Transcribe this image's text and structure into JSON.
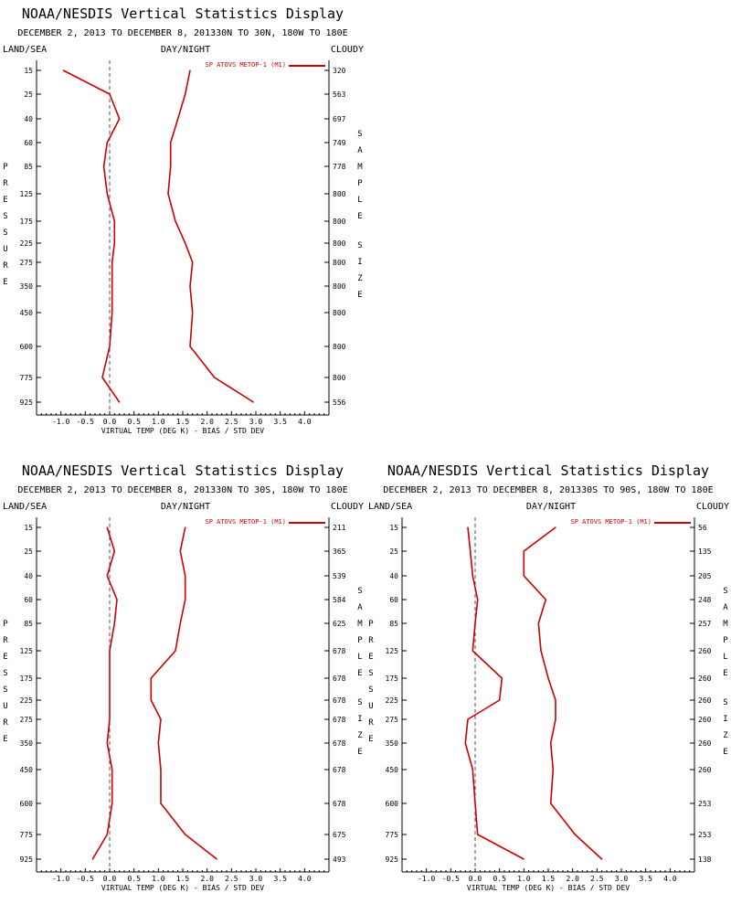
{
  "layout_note_colors": {
    "line": "#cc0000",
    "axis": "#000000",
    "zero_line": "#555555"
  },
  "chart_data": [
    {
      "type": "line",
      "title": "NOAA/NESDIS Vertical Statistics Display",
      "subtitle": "DECEMBER 2, 2013 TO DECEMBER 8, 201330N TO 30N, 180W TO 180E",
      "corner_left": "LAND/SEA",
      "corner_center": "DAY/NIGHT",
      "corner_right": "CLOUDY",
      "xlabel": "VIRTUAL TEMP (DEG K) - BIAS / STD DEV",
      "ylabel_left": "PRESSURE",
      "ylabel_right": "SAMPLE SIZE",
      "legend": "SP ATOVS METOP-1 (M1)",
      "xlim": [
        -1.5,
        4.5
      ],
      "xticks": [
        "-1.0",
        "-0.5",
        "0.0",
        "0.5",
        "1.0",
        "1.5",
        "2.0",
        "2.5",
        "3.0",
        "3.5",
        "4.0"
      ],
      "pressure_levels": [
        "15",
        "25",
        "40",
        "60",
        "85",
        "125",
        "175",
        "225",
        "275",
        "350",
        "450",
        "600",
        "775",
        "925"
      ],
      "sample_sizes": [
        "320",
        "563",
        "697",
        "749",
        "778",
        "800",
        "800",
        "800",
        "800",
        "800",
        "800",
        "800",
        "800",
        "556"
      ],
      "series": [
        {
          "name": "bias",
          "values": [
            -0.95,
            0.0,
            0.2,
            -0.05,
            -0.12,
            -0.05,
            0.1,
            0.1,
            0.05,
            0.05,
            0.05,
            0.0,
            -0.15,
            0.2
          ]
        },
        {
          "name": "std dev",
          "values": [
            1.65,
            1.55,
            1.4,
            1.25,
            1.25,
            1.2,
            1.35,
            1.55,
            1.7,
            1.65,
            1.7,
            1.65,
            2.15,
            2.95
          ]
        }
      ]
    },
    {
      "type": "line",
      "title": "NOAA/NESDIS Vertical Statistics Display",
      "subtitle": "DECEMBER 2, 2013 TO DECEMBER 8, 201330N TO 30S, 180W TO 180E",
      "corner_left": "LAND/SEA",
      "corner_center": "DAY/NIGHT",
      "corner_right": "CLOUDY",
      "xlabel": "VIRTUAL TEMP (DEG K) - BIAS / STD DEV",
      "ylabel_left": "PRESSURE",
      "ylabel_right": "SAMPLE SIZE",
      "legend": "SP ATOVS METOP-1 (M1)",
      "xlim": [
        -1.5,
        4.5
      ],
      "xticks": [
        "-1.0",
        "-0.5",
        "0.0",
        "0.5",
        "1.0",
        "1.5",
        "2.0",
        "2.5",
        "3.0",
        "3.5",
        "4.0"
      ],
      "pressure_levels": [
        "15",
        "25",
        "40",
        "60",
        "85",
        "125",
        "175",
        "225",
        "275",
        "350",
        "450",
        "600",
        "775",
        "925"
      ],
      "sample_sizes": [
        "211",
        "365",
        "539",
        "584",
        "625",
        "678",
        "678",
        "678",
        "678",
        "678",
        "678",
        "678",
        "675",
        "493"
      ],
      "series": [
        {
          "name": "bias",
          "values": [
            -0.05,
            0.1,
            -0.05,
            0.15,
            0.1,
            0.0,
            0.0,
            0.0,
            0.0,
            -0.05,
            0.05,
            0.05,
            -0.05,
            -0.35
          ]
        },
        {
          "name": "std dev",
          "values": [
            1.55,
            1.45,
            1.55,
            1.55,
            1.45,
            1.35,
            0.85,
            0.85,
            1.05,
            1.0,
            1.05,
            1.05,
            1.55,
            2.2
          ]
        }
      ]
    },
    {
      "type": "line",
      "title": "NOAA/NESDIS Vertical Statistics Display",
      "subtitle": "DECEMBER 2, 2013 TO DECEMBER 8, 201330S TO 90S, 180W TO 180E",
      "corner_left": "LAND/SEA",
      "corner_center": "DAY/NIGHT",
      "corner_right": "CLOUDY",
      "xlabel": "VIRTUAL TEMP (DEG K) - BIAS / STD DEV",
      "ylabel_left": "PRESSURE",
      "ylabel_right": "SAMPLE SIZE",
      "legend": "SP ATOVS METOP-1 (M1)",
      "xlim": [
        -1.5,
        4.5
      ],
      "xticks": [
        "-1.0",
        "-0.5",
        "0.0",
        "0.5",
        "1.0",
        "1.5",
        "2.0",
        "2.5",
        "3.0",
        "3.5",
        "4.0"
      ],
      "pressure_levels": [
        "15",
        "25",
        "40",
        "60",
        "85",
        "125",
        "175",
        "225",
        "275",
        "350",
        "450",
        "600",
        "775",
        "925"
      ],
      "sample_sizes": [
        "56",
        "135",
        "205",
        "248",
        "257",
        "260",
        "260",
        "260",
        "260",
        "260",
        "260",
        "253",
        "253",
        "138"
      ],
      "series": [
        {
          "name": "bias",
          "values": [
            -0.15,
            -0.1,
            -0.05,
            0.05,
            0.0,
            -0.05,
            0.55,
            0.5,
            -0.15,
            -0.2,
            -0.05,
            0.0,
            0.05,
            1.0
          ]
        },
        {
          "name": "std dev",
          "values": [
            1.65,
            1.0,
            1.0,
            1.45,
            1.3,
            1.35,
            1.5,
            1.65,
            1.65,
            1.55,
            1.6,
            1.55,
            2.05,
            2.6
          ]
        }
      ]
    }
  ]
}
